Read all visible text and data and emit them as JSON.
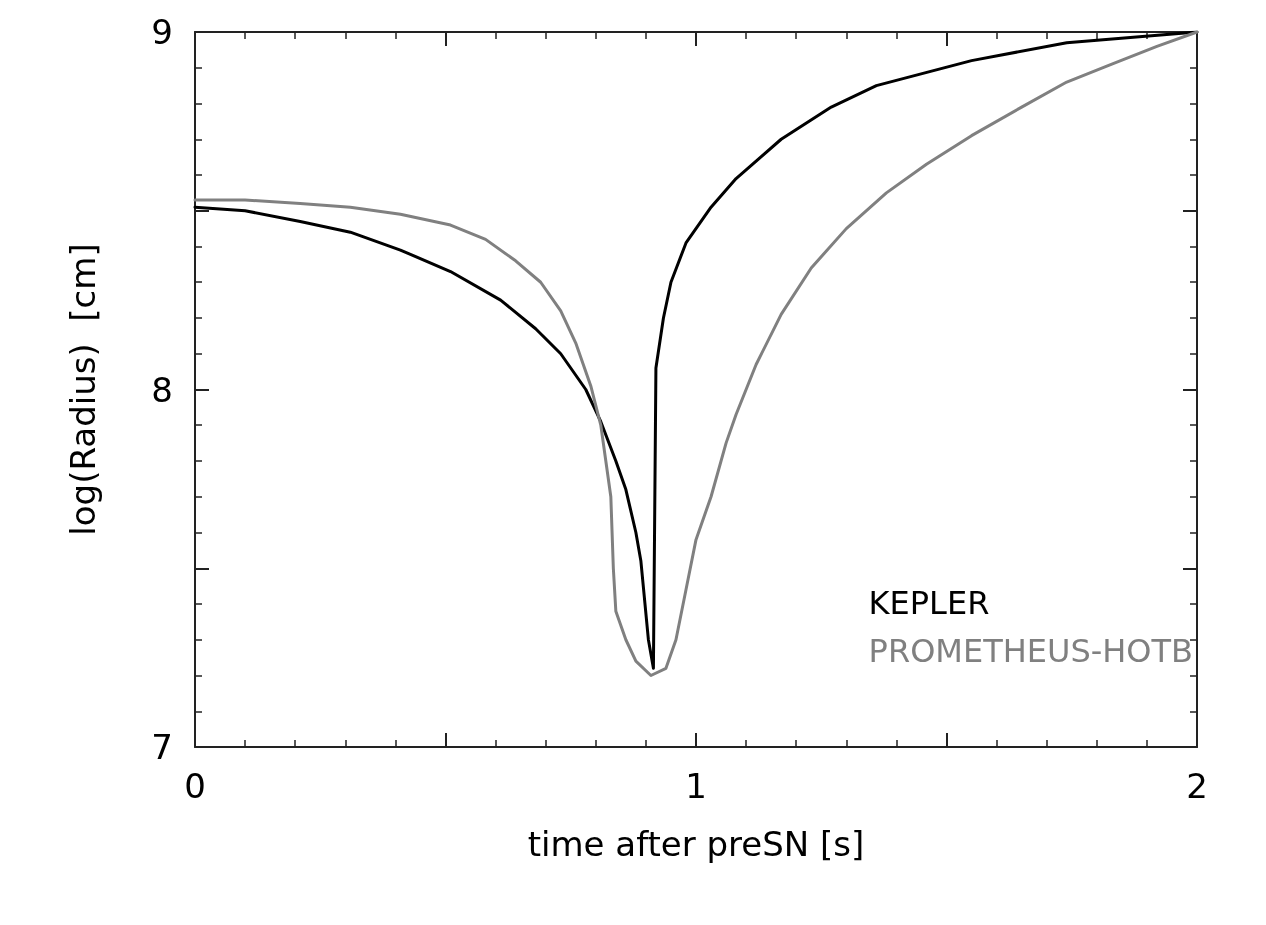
{
  "chart_data": {
    "type": "line",
    "xlabel": "time after preSN [s]",
    "ylabel": "log(Radius)  [cm]",
    "xlim": [
      0,
      2
    ],
    "ylim": [
      7,
      9
    ],
    "xticks": [
      0,
      {
        "value": 0.5,
        "label": null
      },
      1,
      {
        "value": 1.5,
        "label": null
      },
      2
    ],
    "yticks": [
      7,
      {
        "value": 7.5,
        "label": null
      },
      8,
      {
        "value": 8.5,
        "label": null
      },
      9
    ],
    "grid": false,
    "legend": "bottom right",
    "marker": "none",
    "line_style": "solid",
    "series": [
      {
        "name": "KEPLER",
        "color": "#000000",
        "x": [
          0,
          0.1,
          0.21,
          0.31,
          0.41,
          0.51,
          0.61,
          0.68,
          0.73,
          0.78,
          0.81,
          0.84,
          0.86,
          0.88,
          0.89,
          0.905,
          0.915,
          0.92,
          0.935,
          0.95,
          0.98,
          1.03,
          1.08,
          1.17,
          1.27,
          1.36,
          1.55,
          1.74,
          2.0
        ],
        "values": [
          8.51,
          8.5,
          8.47,
          8.44,
          8.39,
          8.33,
          8.25,
          8.17,
          8.1,
          8.0,
          7.91,
          7.8,
          7.72,
          7.6,
          7.52,
          7.3,
          7.22,
          8.06,
          8.2,
          8.3,
          8.41,
          8.51,
          8.59,
          8.7,
          8.79,
          8.85,
          8.92,
          8.97,
          9.0
        ]
      },
      {
        "name": "PROMETHEUS-HOTB",
        "color": "#808080",
        "x": [
          0,
          0.1,
          0.21,
          0.31,
          0.41,
          0.51,
          0.58,
          0.64,
          0.69,
          0.73,
          0.76,
          0.79,
          0.81,
          0.82,
          0.83,
          0.835,
          0.84,
          0.86,
          0.88,
          0.91,
          0.94,
          0.96,
          0.98,
          1.0,
          1.03,
          1.06,
          1.08,
          1.12,
          1.17,
          1.23,
          1.3,
          1.38,
          1.46,
          1.55,
          1.65,
          1.74,
          1.83,
          1.92,
          2.0
        ],
        "values": [
          8.53,
          8.53,
          8.52,
          8.51,
          8.49,
          8.46,
          8.42,
          8.36,
          8.3,
          8.22,
          8.13,
          8.01,
          7.9,
          7.8,
          7.7,
          7.5,
          7.38,
          7.3,
          7.24,
          7.2,
          7.22,
          7.3,
          7.44,
          7.58,
          7.7,
          7.85,
          7.93,
          8.07,
          8.21,
          8.34,
          8.45,
          8.55,
          8.63,
          8.71,
          8.79,
          8.86,
          8.91,
          8.96,
          9.0
        ]
      }
    ]
  }
}
